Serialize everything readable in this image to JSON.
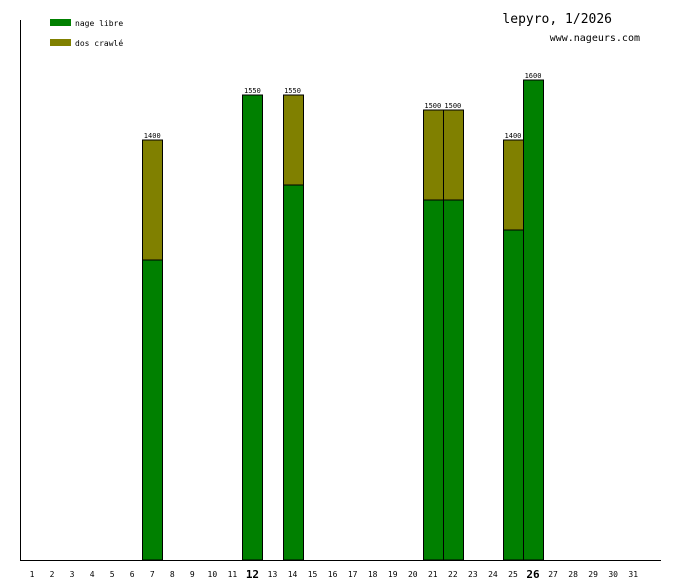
{
  "chart_data": {
    "type": "bar",
    "stacked": true,
    "title": "lepyro, 1/2026",
    "subtitle": "www.nageurs.com",
    "xlabel": "",
    "ylabel": "",
    "ylim": [
      0,
      1700
    ],
    "grid": false,
    "legend_position": "top-left",
    "categories": [
      "1",
      "2",
      "3",
      "4",
      "5",
      "6",
      "7",
      "8",
      "9",
      "10",
      "11",
      "12",
      "13",
      "14",
      "15",
      "16",
      "17",
      "18",
      "19",
      "20",
      "21",
      "22",
      "23",
      "24",
      "25",
      "26",
      "27",
      "28",
      "29",
      "30",
      "31"
    ],
    "highlighted_categories": [
      "12",
      "26"
    ],
    "series": [
      {
        "name": "nage libre",
        "color": "#008000",
        "values": [
          0,
          0,
          0,
          0,
          0,
          0,
          1000,
          0,
          0,
          0,
          0,
          1550,
          0,
          1250,
          0,
          0,
          0,
          0,
          0,
          0,
          1200,
          1200,
          0,
          0,
          1100,
          1600,
          0,
          0,
          0,
          0,
          0
        ]
      },
      {
        "name": "dos crawlé",
        "color": "#808000",
        "values": [
          0,
          0,
          0,
          0,
          0,
          0,
          400,
          0,
          0,
          0,
          0,
          0,
          0,
          300,
          0,
          0,
          0,
          0,
          0,
          0,
          300,
          300,
          0,
          0,
          300,
          0,
          0,
          0,
          0,
          0,
          0
        ]
      }
    ],
    "totals": [
      0,
      0,
      0,
      0,
      0,
      0,
      1400,
      0,
      0,
      0,
      0,
      1550,
      0,
      1550,
      0,
      0,
      0,
      0,
      0,
      0,
      1500,
      1500,
      0,
      0,
      1400,
      1600,
      0,
      0,
      0,
      0,
      0
    ]
  }
}
